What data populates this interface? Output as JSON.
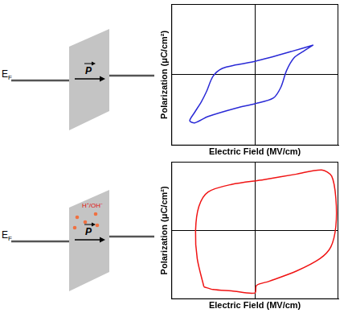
{
  "diagrams": [
    {
      "fermi_label": "E",
      "fermi_subscript": "F",
      "vector_label": "P"
    },
    {
      "fermi_label": "E",
      "fermi_subscript": "F",
      "vector_label": "P",
      "ions_label": "H⁺/OH⁻"
    }
  ],
  "chart_data": [
    {
      "type": "line",
      "x_label": "Electric Field (MV/cm)",
      "y_label": "Polarization (μC/cm²)",
      "color": "#2a2ad6",
      "grid": true,
      "tick_labels": false,
      "xlim": [
        -1,
        1
      ],
      "ylim": [
        -1,
        1
      ],
      "xticks": [
        0
      ],
      "yticks": [
        0
      ],
      "x": [
        0.7,
        0.44,
        0.17,
        0,
        -0.22,
        -0.39,
        -0.5,
        -0.58,
        -0.64,
        -0.72,
        -0.78,
        -0.72,
        -0.56,
        -0.22,
        0,
        0.22,
        0.31,
        0.38,
        0.47,
        0.58,
        0.7
      ],
      "values": [
        0.42,
        0.33,
        0.24,
        0.19,
        0.14,
        0.09,
        -0.02,
        -0.24,
        -0.38,
        -0.53,
        -0.65,
        -0.68,
        -0.59,
        -0.47,
        -0.41,
        -0.33,
        -0.18,
        0.06,
        0.24,
        0.33,
        0.42
      ]
    },
    {
      "type": "line",
      "x_label": "Electric Field (MV/cm)",
      "y_label": "Polarization (μC/cm²)",
      "color": "#f01414",
      "grid": true,
      "tick_labels": false,
      "xlim": [
        -1,
        1
      ],
      "ylim": [
        -1,
        1
      ],
      "xticks": [
        0
      ],
      "yticks": [
        0
      ],
      "x": [
        -0.61,
        -0.69,
        -0.71,
        -0.67,
        -0.56,
        -0.28,
        0.11,
        0.5,
        0.8,
        0.92,
        0.97,
        0.97,
        0.91,
        0.78,
        0.5,
        0.17,
        0.02,
        0,
        -0.28,
        -0.5,
        -0.61
      ],
      "values": [
        -0.82,
        -0.41,
        0,
        0.35,
        0.56,
        0.67,
        0.74,
        0.82,
        0.88,
        0.79,
        0.47,
        0.06,
        -0.24,
        -0.41,
        -0.59,
        -0.74,
        -0.8,
        -0.91,
        -0.88,
        -0.86,
        -0.82
      ]
    }
  ]
}
